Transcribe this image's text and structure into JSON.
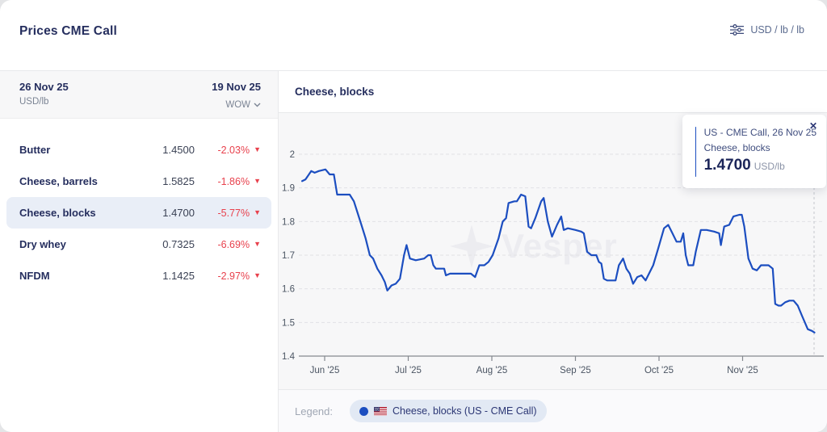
{
  "header": {
    "title": "Prices CME Call",
    "unit_label": "USD / lb / lb"
  },
  "table": {
    "col_date_current": "26 Nov 25",
    "col_unit": "USD/lb",
    "col_date_prev": "19 Nov 25",
    "col_change": "WOW",
    "rows": [
      {
        "name": "Butter",
        "value": "1.4500",
        "change": "-2.03%",
        "selected": false
      },
      {
        "name": "Cheese, barrels",
        "value": "1.5825",
        "change": "-1.86%",
        "selected": false
      },
      {
        "name": "Cheese, blocks",
        "value": "1.4700",
        "change": "-5.77%",
        "selected": true
      },
      {
        "name": "Dry whey",
        "value": "0.7325",
        "change": "-6.69%",
        "selected": false
      },
      {
        "name": "NFDM",
        "value": "1.1425",
        "change": "-2.97%",
        "selected": false
      }
    ]
  },
  "chart": {
    "title": "Cheese, blocks",
    "watermark": "Vesper",
    "tooltip": {
      "line1": "US - CME Call, 26 Nov 25",
      "line2": "Cheese, blocks",
      "value": "1.4700",
      "unit": "USD/lb"
    },
    "legend_label": "Legend:",
    "legend_item": "Cheese, blocks (US - CME Call)"
  },
  "icons": {
    "down_triangle": "▼",
    "close": "✕"
  },
  "colors": {
    "accent_blue": "#1c4ec0",
    "negative_red": "#e8414d",
    "navy_text": "#252e5e",
    "selected_row_bg": "#e9eef7",
    "chart_bg": "#f7f7f8",
    "legend_pill_bg": "#e2e9f4"
  },
  "chart_data": {
    "type": "line",
    "title": "Cheese, blocks",
    "ylabel": "USD/lb",
    "ylim": [
      1.4,
      2.05
    ],
    "xlim": [
      -0.28,
      5.92
    ],
    "x_unit_note": "x = months after 1 Jun 2025",
    "grid": "horizontal-dashed",
    "legend_position": "bottom",
    "y_ticks": [
      {
        "v": 1.4,
        "label": "1.4"
      },
      {
        "v": 1.5,
        "label": "1.5"
      },
      {
        "v": 1.6,
        "label": "1.6"
      },
      {
        "v": 1.7,
        "label": "1.7"
      },
      {
        "v": 1.8,
        "label": "1.8"
      },
      {
        "v": 1.9,
        "label": "1.9"
      },
      {
        "v": 2.0,
        "label": "2"
      }
    ],
    "x_ticks": [
      {
        "m": 0,
        "label": "Jun '25"
      },
      {
        "m": 1,
        "label": "Jul '25"
      },
      {
        "m": 2,
        "label": "Aug '25"
      },
      {
        "m": 3,
        "label": "Sep '25"
      },
      {
        "m": 4,
        "label": "Oct '25"
      },
      {
        "m": 5,
        "label": "Nov '25"
      }
    ],
    "crosshair_x": 5.855,
    "end_value": 1.47,
    "series": [
      {
        "name": "Cheese, blocks (US - CME Call)",
        "color": "#1c4ec0",
        "points": [
          [
            -0.27,
            1.92
          ],
          [
            -0.23,
            1.925
          ],
          [
            -0.16,
            1.95
          ],
          [
            -0.12,
            1.945
          ],
          [
            -0.07,
            1.95
          ],
          [
            0.01,
            1.955
          ],
          [
            0.06,
            1.94
          ],
          [
            0.11,
            1.94
          ],
          [
            0.15,
            1.88
          ],
          [
            0.3,
            1.88
          ],
          [
            0.35,
            1.86
          ],
          [
            0.44,
            1.79
          ],
          [
            0.49,
            1.75
          ],
          [
            0.54,
            1.7
          ],
          [
            0.58,
            1.69
          ],
          [
            0.63,
            1.66
          ],
          [
            0.68,
            1.64
          ],
          [
            0.72,
            1.62
          ],
          [
            0.75,
            1.595
          ],
          [
            0.8,
            1.61
          ],
          [
            0.85,
            1.615
          ],
          [
            0.9,
            1.63
          ],
          [
            0.95,
            1.7
          ],
          [
            0.98,
            1.73
          ],
          [
            1.02,
            1.69
          ],
          [
            1.09,
            1.685
          ],
          [
            1.19,
            1.69
          ],
          [
            1.24,
            1.7
          ],
          [
            1.27,
            1.7
          ],
          [
            1.3,
            1.67
          ],
          [
            1.33,
            1.66
          ],
          [
            1.43,
            1.66
          ],
          [
            1.45,
            1.64
          ],
          [
            1.5,
            1.645
          ],
          [
            1.57,
            1.645
          ],
          [
            1.67,
            1.645
          ],
          [
            1.75,
            1.645
          ],
          [
            1.8,
            1.635
          ],
          [
            1.85,
            1.67
          ],
          [
            1.91,
            1.67
          ],
          [
            1.96,
            1.68
          ],
          [
            2.01,
            1.7
          ],
          [
            2.08,
            1.75
          ],
          [
            2.13,
            1.8
          ],
          [
            2.17,
            1.81
          ],
          [
            2.2,
            1.855
          ],
          [
            2.27,
            1.86
          ],
          [
            2.3,
            1.86
          ],
          [
            2.35,
            1.88
          ],
          [
            2.4,
            1.875
          ],
          [
            2.44,
            1.785
          ],
          [
            2.47,
            1.78
          ],
          [
            2.52,
            1.81
          ],
          [
            2.59,
            1.86
          ],
          [
            2.62,
            1.87
          ],
          [
            2.67,
            1.8
          ],
          [
            2.72,
            1.755
          ],
          [
            2.78,
            1.79
          ],
          [
            2.83,
            1.815
          ],
          [
            2.86,
            1.775
          ],
          [
            2.91,
            1.78
          ],
          [
            3.0,
            1.775
          ],
          [
            3.07,
            1.77
          ],
          [
            3.1,
            1.765
          ],
          [
            3.14,
            1.71
          ],
          [
            3.19,
            1.7
          ],
          [
            3.25,
            1.7
          ],
          [
            3.28,
            1.68
          ],
          [
            3.31,
            1.675
          ],
          [
            3.34,
            1.63
          ],
          [
            3.38,
            1.625
          ],
          [
            3.48,
            1.625
          ],
          [
            3.52,
            1.67
          ],
          [
            3.57,
            1.69
          ],
          [
            3.61,
            1.66
          ],
          [
            3.65,
            1.645
          ],
          [
            3.69,
            1.615
          ],
          [
            3.74,
            1.635
          ],
          [
            3.79,
            1.64
          ],
          [
            3.84,
            1.625
          ],
          [
            3.88,
            1.645
          ],
          [
            3.93,
            1.67
          ],
          [
            3.99,
            1.72
          ],
          [
            4.06,
            1.78
          ],
          [
            4.11,
            1.79
          ],
          [
            4.16,
            1.765
          ],
          [
            4.21,
            1.74
          ],
          [
            4.26,
            1.74
          ],
          [
            4.29,
            1.765
          ],
          [
            4.32,
            1.7
          ],
          [
            4.35,
            1.67
          ],
          [
            4.41,
            1.67
          ],
          [
            4.44,
            1.71
          ],
          [
            4.5,
            1.775
          ],
          [
            4.57,
            1.775
          ],
          [
            4.66,
            1.77
          ],
          [
            4.72,
            1.765
          ],
          [
            4.74,
            1.73
          ],
          [
            4.78,
            1.785
          ],
          [
            4.84,
            1.79
          ],
          [
            4.89,
            1.815
          ],
          [
            4.96,
            1.82
          ],
          [
            4.99,
            1.82
          ],
          [
            5.02,
            1.785
          ],
          [
            5.07,
            1.69
          ],
          [
            5.12,
            1.66
          ],
          [
            5.17,
            1.655
          ],
          [
            5.22,
            1.67
          ],
          [
            5.31,
            1.67
          ],
          [
            5.36,
            1.66
          ],
          [
            5.39,
            1.555
          ],
          [
            5.43,
            1.55
          ],
          [
            5.46,
            1.55
          ],
          [
            5.51,
            1.56
          ],
          [
            5.56,
            1.565
          ],
          [
            5.61,
            1.565
          ],
          [
            5.66,
            1.55
          ],
          [
            5.71,
            1.52
          ],
          [
            5.78,
            1.48
          ],
          [
            5.83,
            1.475
          ],
          [
            5.86,
            1.47
          ]
        ]
      }
    ]
  }
}
